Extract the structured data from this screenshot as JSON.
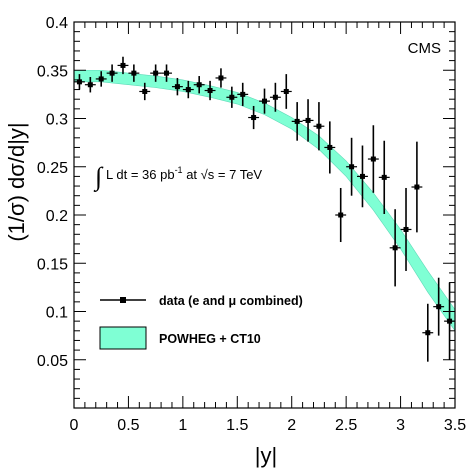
{
  "chart_data": {
    "type": "scatter",
    "xlabel": "|y|",
    "ylabel": "(1/σ) dσ/d|y|",
    "xlim": [
      0,
      3.5
    ],
    "ylim": [
      0,
      0.4
    ],
    "x_ticks": [
      "0",
      "0.5",
      "1",
      "1.5",
      "2",
      "2.5",
      "3",
      "3.5"
    ],
    "y_ticks": [
      "0.05",
      "0.1",
      "0.15",
      "0.2",
      "0.25",
      "0.3",
      "0.35",
      "0.4"
    ],
    "experiment_label": "CMS",
    "annotation": "∫ L dt = 36 pb-1 at √s = 7 TeV",
    "series": [
      {
        "name": "data (e and μ combined)",
        "points": [
          {
            "x": 0.05,
            "y": 0.338,
            "err": 0.008
          },
          {
            "x": 0.15,
            "y": 0.335,
            "err": 0.008
          },
          {
            "x": 0.25,
            "y": 0.341,
            "err": 0.008
          },
          {
            "x": 0.35,
            "y": 0.347,
            "err": 0.009
          },
          {
            "x": 0.45,
            "y": 0.355,
            "err": 0.009
          },
          {
            "x": 0.55,
            "y": 0.347,
            "err": 0.009
          },
          {
            "x": 0.65,
            "y": 0.328,
            "err": 0.009
          },
          {
            "x": 0.75,
            "y": 0.347,
            "err": 0.009
          },
          {
            "x": 0.85,
            "y": 0.347,
            "err": 0.009
          },
          {
            "x": 0.95,
            "y": 0.333,
            "err": 0.009
          },
          {
            "x": 1.05,
            "y": 0.33,
            "err": 0.009
          },
          {
            "x": 1.15,
            "y": 0.335,
            "err": 0.009
          },
          {
            "x": 1.25,
            "y": 0.329,
            "err": 0.01
          },
          {
            "x": 1.35,
            "y": 0.342,
            "err": 0.01
          },
          {
            "x": 1.45,
            "y": 0.322,
            "err": 0.011
          },
          {
            "x": 1.55,
            "y": 0.325,
            "err": 0.012
          },
          {
            "x": 1.65,
            "y": 0.301,
            "err": 0.012
          },
          {
            "x": 1.75,
            "y": 0.318,
            "err": 0.013
          },
          {
            "x": 1.85,
            "y": 0.322,
            "err": 0.015
          },
          {
            "x": 1.95,
            "y": 0.328,
            "err": 0.018
          },
          {
            "x": 2.05,
            "y": 0.297,
            "err": 0.02
          },
          {
            "x": 2.15,
            "y": 0.298,
            "err": 0.022
          },
          {
            "x": 2.25,
            "y": 0.292,
            "err": 0.025
          },
          {
            "x": 2.35,
            "y": 0.27,
            "err": 0.027
          },
          {
            "x": 2.45,
            "y": 0.2,
            "err": 0.028
          },
          {
            "x": 2.55,
            "y": 0.25,
            "err": 0.03
          },
          {
            "x": 2.65,
            "y": 0.24,
            "err": 0.032
          },
          {
            "x": 2.75,
            "y": 0.258,
            "err": 0.035
          },
          {
            "x": 2.85,
            "y": 0.239,
            "err": 0.038
          },
          {
            "x": 2.95,
            "y": 0.166,
            "err": 0.04
          },
          {
            "x": 3.05,
            "y": 0.185,
            "err": 0.043
          },
          {
            "x": 3.15,
            "y": 0.229,
            "err": 0.047
          },
          {
            "x": 3.25,
            "y": 0.078,
            "err": 0.03
          },
          {
            "x": 3.35,
            "y": 0.105,
            "err": 0.03
          },
          {
            "x": 3.45,
            "y": 0.09,
            "err": 0.04
          }
        ]
      },
      {
        "name": "POWHEG + CT10",
        "type": "band",
        "color": "#7fffd4",
        "x": [
          0,
          0.25,
          0.5,
          0.75,
          1.0,
          1.25,
          1.5,
          1.75,
          2.0,
          2.25,
          2.5,
          2.75,
          3.0,
          3.25,
          3.5
        ],
        "low": [
          0.338,
          0.338,
          0.335,
          0.332,
          0.328,
          0.322,
          0.315,
          0.304,
          0.289,
          0.268,
          0.24,
          0.205,
          0.165,
          0.12,
          0.08
        ],
        "high": [
          0.35,
          0.35,
          0.347,
          0.344,
          0.34,
          0.334,
          0.327,
          0.316,
          0.301,
          0.282,
          0.256,
          0.223,
          0.185,
          0.142,
          0.102
        ]
      }
    ],
    "legend": [
      {
        "label": "data (e and μ combined)",
        "marker": "point-errorbar"
      },
      {
        "label": "POWHEG + CT10",
        "marker": "band",
        "color": "#7fffd4"
      }
    ]
  }
}
